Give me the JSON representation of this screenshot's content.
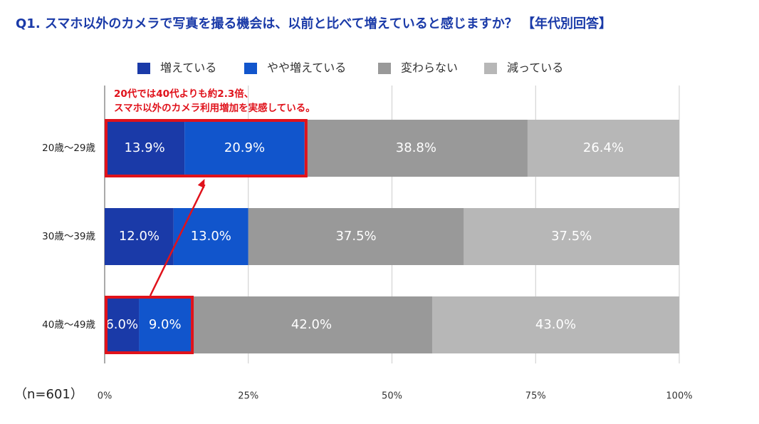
{
  "chart_data": {
    "type": "stacked-barh",
    "title": "Q1.  スマホ以外のカメラで写真を撮る機会は、以前と比べて増えていると感じますか？ 【年代別回答】",
    "annotation": [
      "20代では40代よりも約2.3倍、",
      "スマホ以外のカメラ利用増加を実感している。"
    ],
    "note": "（n=601）",
    "categories": [
      "20歳～29歳",
      "30歳～39歳",
      "40歳～49歳"
    ],
    "series": [
      {
        "name": "増えている",
        "color": "#1a3aa8",
        "values": [
          13.9,
          12.0,
          6.0
        ],
        "value_labels": [
          "13.9%",
          "12.0%",
          "6.0%"
        ]
      },
      {
        "name": "やや増えている",
        "color": "#1155cc",
        "values": [
          20.9,
          13.0,
          9.0
        ],
        "value_labels": [
          "20.9%",
          "13.0%",
          "9.0%"
        ]
      },
      {
        "name": "変わらない",
        "color": "#999999",
        "values": [
          38.8,
          37.5,
          42.0
        ],
        "value_labels": [
          "38.8%",
          "37.5%",
          "42.0%"
        ]
      },
      {
        "name": "減っている",
        "color": "#b7b7b7",
        "values": [
          26.4,
          37.5,
          43.0
        ],
        "value_labels": [
          "26.4%",
          "37.5%",
          "43.0%"
        ]
      }
    ],
    "xlim": [
      0,
      100
    ],
    "xticks": [
      {
        "value": 0,
        "label": "0%"
      },
      {
        "value": 25,
        "label": "25%"
      },
      {
        "value": 50,
        "label": "50%"
      },
      {
        "value": 75,
        "label": "75%"
      },
      {
        "value": 100,
        "label": "100%"
      }
    ],
    "grid": true,
    "legend": "top",
    "highlight_color": "#e0121b"
  }
}
